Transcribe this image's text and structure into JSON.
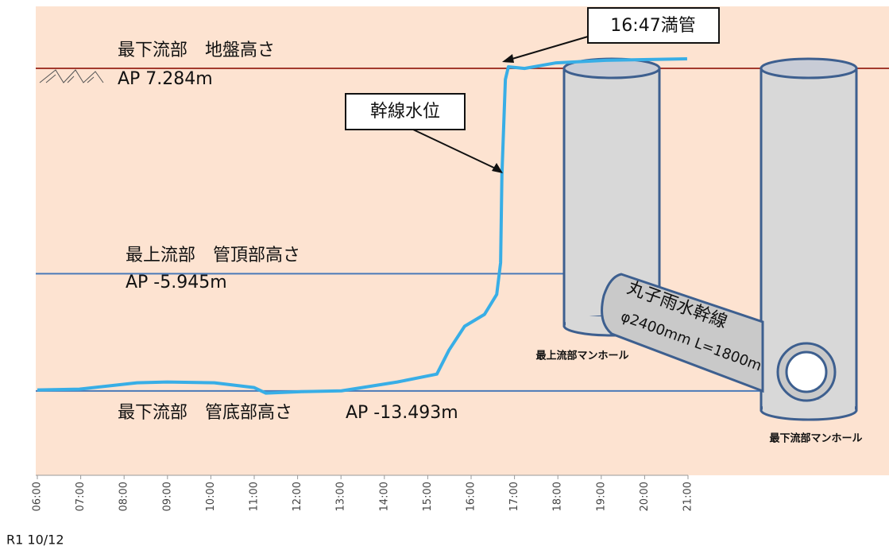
{
  "chart_data": {
    "type": "line",
    "x": [
      6.0,
      6.97,
      8.3,
      8.99,
      10.08,
      11.0,
      11.27,
      12.1,
      13.01,
      14.3,
      15.21,
      15.49,
      15.85,
      16.31,
      16.59,
      16.68,
      16.71,
      16.79,
      16.86,
      17.23,
      17.96,
      19.06,
      20.98
    ],
    "series": [
      {
        "name": "幹線水位",
        "color": "#38aee6",
        "values": [
          -13.43,
          -13.38,
          -12.97,
          -12.92,
          -12.97,
          -13.28,
          -13.64,
          -13.54,
          -13.49,
          -12.92,
          -12.41,
          -10.87,
          -9.33,
          -8.56,
          -7.28,
          -5.23,
          0.41,
          6.57,
          7.39,
          7.28,
          7.64,
          7.8,
          7.9
        ]
      }
    ],
    "xlim": [
      6,
      21
    ],
    "xticks": [
      {
        "value": 6,
        "label": "06:00"
      },
      {
        "value": 7,
        "label": "07:00"
      },
      {
        "value": 8,
        "label": "08:00"
      },
      {
        "value": 9,
        "label": "09:00"
      },
      {
        "value": 10,
        "label": "10:00"
      },
      {
        "value": 11,
        "label": "11:00"
      },
      {
        "value": 12,
        "label": "12:00"
      },
      {
        "value": 13,
        "label": "13:00"
      },
      {
        "value": 14,
        "label": "14:00"
      },
      {
        "value": 15,
        "label": "15:00"
      },
      {
        "value": 16,
        "label": "16:00"
      },
      {
        "value": 17,
        "label": "17:00"
      },
      {
        "value": 18,
        "label": "18:00"
      },
      {
        "value": 19,
        "label": "19:00"
      },
      {
        "value": 20,
        "label": "20:00"
      },
      {
        "value": 21,
        "label": "21:00"
      }
    ],
    "ylim": [
      -18.93,
      11.28
    ],
    "reference_lines": [
      {
        "label": "最下流部　地盤高さ",
        "value": 7.284,
        "value_label": "AP 7.284m",
        "color": "#a33a2e"
      },
      {
        "label": "最上流部　管頂部高さ",
        "value": -5.945,
        "value_label": "AP -5.945m",
        "color": "#4a7ab8"
      },
      {
        "label": "最下流部　管底部高さ",
        "value": -13.493,
        "value_label": "AP -13.493m",
        "color": "#4a7ab8"
      }
    ],
    "annotations": {
      "full_pipe": "16:47満管",
      "upstream_manhole": "最上流部マンホール",
      "downstream_manhole": "最下流部マンホール",
      "trunk_name": "丸子雨水幹線",
      "trunk_size": "φ2400mm L=1800m"
    },
    "date": "R1 10/12"
  }
}
